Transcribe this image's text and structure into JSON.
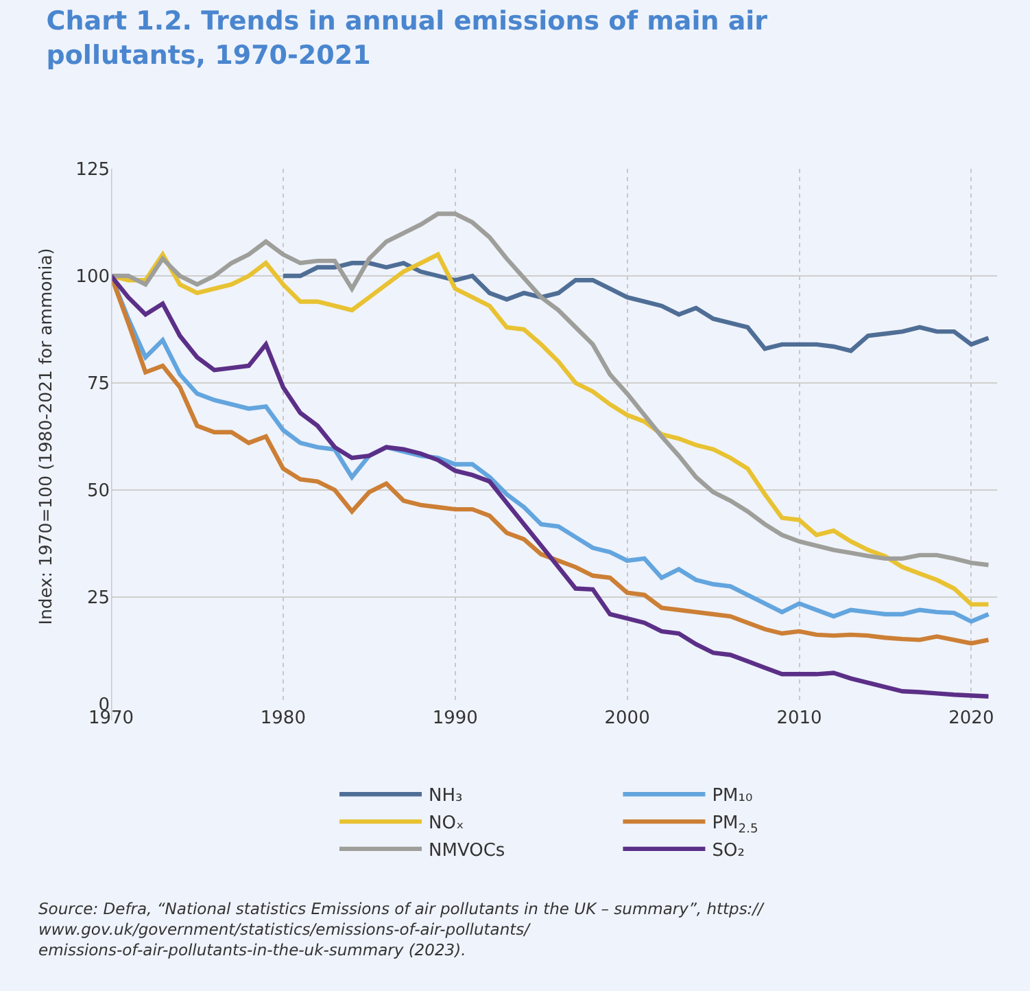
{
  "chart_data": {
    "type": "line",
    "title": "Chart 1.2. Trends in annual emissions of main air pollutants, 1970-2021",
    "ylabel": "Index: 1970=100 (1980-2021 for ammonia)",
    "x": [
      1970,
      1971,
      1972,
      1973,
      1974,
      1975,
      1976,
      1977,
      1978,
      1979,
      1980,
      1981,
      1982,
      1983,
      1984,
      1985,
      1986,
      1987,
      1988,
      1989,
      1990,
      1991,
      1992,
      1993,
      1994,
      1995,
      1996,
      1997,
      1998,
      1999,
      2000,
      2001,
      2002,
      2003,
      2004,
      2005,
      2006,
      2007,
      2008,
      2009,
      2010,
      2011,
      2012,
      2013,
      2014,
      2015,
      2016,
      2017,
      2018,
      2019,
      2020,
      2021
    ],
    "xlim": [
      1970,
      2021.5
    ],
    "xticks": [
      1970,
      1980,
      1990,
      2000,
      2010,
      2020
    ],
    "ylim": [
      0,
      125
    ],
    "yticks": [
      0,
      25,
      50,
      75,
      100,
      125
    ],
    "grid": true,
    "legend": "bottom",
    "line_style": "solid",
    "marker": "none",
    "series": [
      {
        "name": "NH₃",
        "color": "#4f6e96",
        "values": [
          null,
          null,
          null,
          null,
          null,
          null,
          null,
          null,
          null,
          null,
          100,
          100,
          102,
          102,
          103,
          103,
          102,
          103,
          101,
          100,
          99,
          100,
          96,
          94.5,
          96,
          95,
          96,
          99,
          99,
          97,
          95,
          94,
          93,
          91,
          92.5,
          90,
          89,
          88,
          83,
          84,
          84,
          84,
          83.5,
          82.5,
          86,
          86.5,
          87,
          88,
          87,
          87,
          84,
          85.5
        ]
      },
      {
        "name": "NOₓ",
        "color": "#e8c232",
        "values": [
          100,
          99,
          99,
          105,
          98,
          96,
          97,
          98,
          100,
          103,
          98,
          94,
          94,
          93,
          92,
          95,
          98,
          101,
          103,
          105,
          97,
          95,
          93,
          88,
          87.5,
          84,
          80,
          75,
          73,
          70,
          67.5,
          66,
          63,
          62,
          60.5,
          59.5,
          57.5,
          55,
          49,
          43.5,
          43,
          39.5,
          40.5,
          38,
          36,
          34.5,
          32,
          30.5,
          29,
          27,
          23.3,
          23.3
        ]
      },
      {
        "name": "NMVOCs",
        "color": "#9e9e9a",
        "values": [
          100,
          100,
          98,
          104,
          100,
          98,
          100,
          103,
          105,
          108,
          105,
          103,
          103.5,
          103.5,
          97,
          104,
          108,
          110,
          112,
          114.5,
          114.5,
          112.5,
          109,
          104,
          99.5,
          95,
          92,
          88,
          84,
          77,
          72.5,
          67.5,
          62.5,
          58,
          53,
          49.5,
          47.5,
          45,
          42,
          39.5,
          38,
          37,
          36,
          35.3,
          34.6,
          34,
          34,
          34.8,
          34.8,
          34,
          33,
          32.5
        ]
      },
      {
        "name": "PM₁₀",
        "color": "#63a5de",
        "values": [
          100,
          90,
          81,
          85,
          77,
          72.5,
          71,
          70,
          69,
          69.5,
          64,
          61,
          60,
          59.5,
          53,
          58,
          60,
          59,
          58,
          57.5,
          56,
          56,
          53,
          49,
          46,
          42,
          41.5,
          39,
          36.5,
          35.5,
          33.5,
          34,
          29.5,
          31.5,
          29,
          28,
          27.5,
          25.5,
          23.5,
          21.5,
          23.5,
          22,
          20.5,
          22,
          21.5,
          21,
          21,
          22,
          21.5,
          21.3,
          19.3,
          21
        ]
      },
      {
        "name": "PM$_{2.5}$",
        "color": "#cc7f35",
        "values": [
          100,
          89,
          77.5,
          79,
          74,
          65,
          63.5,
          63.5,
          61,
          62.5,
          55,
          52.5,
          52,
          50,
          45,
          49.5,
          51.5,
          47.5,
          46.5,
          46,
          45.5,
          45.5,
          44,
          40,
          38.5,
          35,
          33.5,
          32,
          30,
          29.5,
          26,
          25.5,
          22.5,
          22,
          21.5,
          21,
          20.5,
          19,
          17.5,
          16.5,
          17,
          16.2,
          16,
          16.2,
          16,
          15.5,
          15.2,
          15,
          15.8,
          15,
          14.2,
          15
        ]
      },
      {
        "name": "SO₂",
        "color": "#5b2f87",
        "values": [
          100,
          95,
          91,
          93.5,
          86,
          81,
          78,
          78.5,
          79,
          84,
          74,
          68,
          65,
          60,
          57.5,
          58,
          60,
          59.5,
          58.5,
          57,
          54.5,
          53.5,
          52,
          47,
          42,
          37,
          32,
          27,
          26.8,
          21,
          20,
          19,
          17,
          16.5,
          14,
          12,
          11.5,
          10,
          8.5,
          7,
          7,
          7,
          7.3,
          6,
          5,
          4,
          3,
          2.8,
          2.5,
          2.2,
          2,
          1.8
        ]
      }
    ],
    "annotations": [
      "Source: Defra, “National statistics Emissions of air pollutants in the UK – summary”, https://www.gov.uk/government/statistics/emissions-of-air-pollutants/emissions-of-air-pollutants-in-the-uk-summary (2023)."
    ]
  }
}
